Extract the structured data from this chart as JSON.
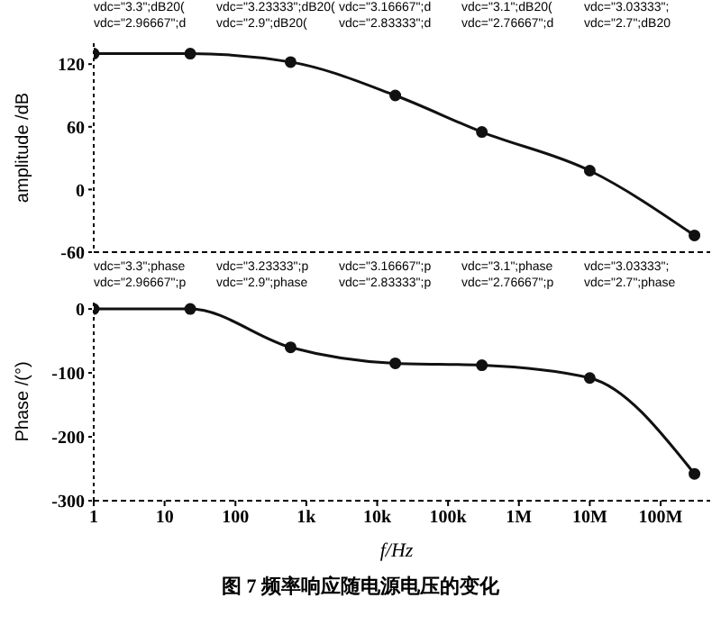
{
  "chart_data": [
    {
      "type": "line",
      "ylabel": "amplitude /dB",
      "log": "x",
      "xlim": [
        1,
        500000000
      ],
      "ylim": [
        -60,
        140
      ],
      "yticks": [
        -60,
        0,
        60,
        120
      ],
      "tick_labels": "y",
      "grid": false,
      "marker": "circle",
      "line_style": "solid",
      "annotations": [
        "vdc=\"3.3\";dB20(",
        "vdc=\"3.23333\";dB20(",
        "vdc=\"3.16667\";d",
        "vdc=\"3.1\";dB20(",
        "vdc=\"3.03333\";",
        "vdc=\"2.96667\";d",
        "vdc=\"2.9\";dB20(",
        "vdc=\"2.83333\";d",
        "vdc=\"2.76667\";d",
        "vdc=\"2.7\";dB20"
      ],
      "x": [
        1,
        23,
        600,
        18000,
        300000,
        10000000,
        300000000
      ],
      "series": [
        {
          "color": "#111111",
          "values": [
            130,
            130,
            122,
            90,
            55,
            18,
            -44
          ]
        }
      ]
    },
    {
      "type": "line",
      "title": "图 7   频率响应随电源电压的变化",
      "xlabel": "f/Hz",
      "ylabel": "Phase /(°)",
      "log": "x",
      "xlim": [
        1,
        500000000
      ],
      "xticks": [
        {
          "value": 1,
          "label": "1"
        },
        {
          "value": 10,
          "label": "10"
        },
        {
          "value": 100,
          "label": "100"
        },
        {
          "value": 1000,
          "label": "1k"
        },
        {
          "value": 10000,
          "label": "10k"
        },
        {
          "value": 100000,
          "label": "100k"
        },
        {
          "value": 1000000,
          "label": "1M"
        },
        {
          "value": 10000000,
          "label": "10M"
        },
        {
          "value": 100000000,
          "label": "100M"
        }
      ],
      "ylim": [
        -300,
        10
      ],
      "yticks": [
        -300,
        -200,
        -100,
        0
      ],
      "grid": false,
      "marker": "circle",
      "line_style": "solid",
      "annotations": [
        "vdc=\"3.3\";phase",
        "vdc=\"3.23333\";p",
        "vdc=\"3.16667\";p",
        "vdc=\"3.1\";phase",
        "vdc=\"3.03333\";",
        "vdc=\"2.96667\";p",
        "vdc=\"2.9\";phase",
        "vdc=\"2.83333\";p",
        "vdc=\"2.76667\";p",
        "vdc=\"2.7\";phase"
      ],
      "x": [
        1,
        23,
        600,
        18000,
        300000,
        10000000,
        300000000
      ],
      "series": [
        {
          "color": "#111111",
          "values": [
            0,
            0,
            -60,
            -85,
            -88,
            -108,
            -258
          ]
        }
      ]
    }
  ]
}
